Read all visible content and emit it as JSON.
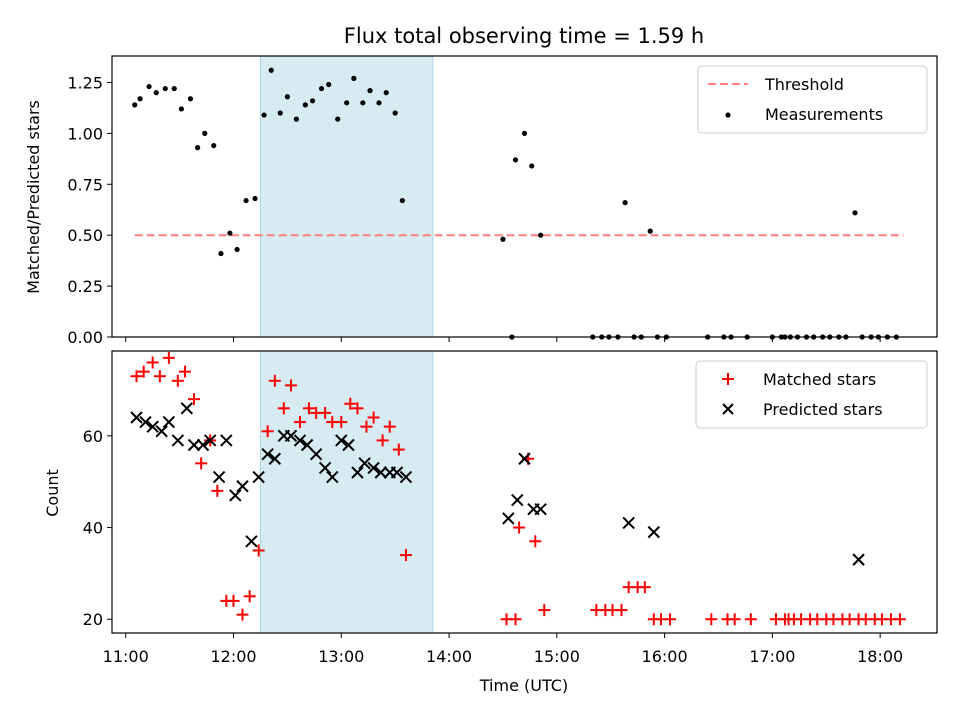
{
  "chart_data": {
    "type": "scatter",
    "title": "Flux total observing time = 1.59 h",
    "xlabel": "Time (UTC)",
    "x_ticks": [
      "11:00",
      "12:00",
      "13:00",
      "14:00",
      "15:00",
      "16:00",
      "17:00",
      "18:00"
    ],
    "highlight_span": {
      "start": "12:15",
      "end": "13:51",
      "color": "#add8e6"
    },
    "panels": [
      {
        "ylabel": "Matched/Predicted stars",
        "ylim": [
          0,
          1.38
        ],
        "y_ticks": [
          "0.00",
          "0.25",
          "0.50",
          "0.75",
          "1.00",
          "1.25"
        ],
        "legend": "top-right",
        "threshold": {
          "name": "Threshold",
          "value": 0.5,
          "x_range": [
            "11:05",
            "18:13"
          ],
          "color": "#ff7f7f"
        },
        "series": [
          {
            "name": "Measurements",
            "marker": "dot",
            "color": "#000000",
            "points": [
              [
                "11:05",
                1.14
              ],
              [
                "11:08",
                1.17
              ],
              [
                "11:13",
                1.23
              ],
              [
                "11:17",
                1.2
              ],
              [
                "11:22",
                1.22
              ],
              [
                "11:27",
                1.22
              ],
              [
                "11:31",
                1.12
              ],
              [
                "11:36",
                1.17
              ],
              [
                "11:40",
                0.93
              ],
              [
                "11:44",
                1.0
              ],
              [
                "11:49",
                0.94
              ],
              [
                "11:53",
                0.41
              ],
              [
                "11:58",
                0.51
              ],
              [
                "12:02",
                0.43
              ],
              [
                "12:07",
                0.67
              ],
              [
                "12:12",
                0.68
              ],
              [
                "12:17",
                1.09
              ],
              [
                "12:21",
                1.31
              ],
              [
                "12:26",
                1.1
              ],
              [
                "12:30",
                1.18
              ],
              [
                "12:35",
                1.07
              ],
              [
                "12:40",
                1.14
              ],
              [
                "12:44",
                1.16
              ],
              [
                "12:49",
                1.22
              ],
              [
                "12:53",
                1.24
              ],
              [
                "12:58",
                1.07
              ],
              [
                "13:03",
                1.15
              ],
              [
                "13:07",
                1.27
              ],
              [
                "13:12",
                1.15
              ],
              [
                "13:16",
                1.21
              ],
              [
                "13:21",
                1.15
              ],
              [
                "13:25",
                1.2
              ],
              [
                "13:30",
                1.1
              ],
              [
                "13:34",
                0.67
              ],
              [
                "14:30",
                0.48
              ],
              [
                "14:35",
                0.0
              ],
              [
                "14:37",
                0.87
              ],
              [
                "14:42",
                1.0
              ],
              [
                "14:46",
                0.84
              ],
              [
                "14:51",
                0.5
              ],
              [
                "15:20",
                0.0
              ],
              [
                "15:25",
                0.0
              ],
              [
                "15:29",
                0.0
              ],
              [
                "15:34",
                0.0
              ],
              [
                "15:38",
                0.66
              ],
              [
                "15:43",
                0.0
              ],
              [
                "15:47",
                0.0
              ],
              [
                "15:52",
                0.52
              ],
              [
                "15:56",
                0.0
              ],
              [
                "16:01",
                0.0
              ],
              [
                "16:24",
                0.0
              ],
              [
                "16:33",
                0.0
              ],
              [
                "16:37",
                0.0
              ],
              [
                "16:46",
                0.0
              ],
              [
                "17:00",
                0.0
              ],
              [
                "17:05",
                0.0
              ],
              [
                "17:07",
                0.0
              ],
              [
                "17:10",
                0.0
              ],
              [
                "17:14",
                0.0
              ],
              [
                "17:19",
                0.0
              ],
              [
                "17:23",
                0.0
              ],
              [
                "17:28",
                0.0
              ],
              [
                "17:32",
                0.0
              ],
              [
                "17:37",
                0.0
              ],
              [
                "17:41",
                0.0
              ],
              [
                "17:46",
                0.61
              ],
              [
                "17:50",
                0.0
              ],
              [
                "17:55",
                0.0
              ],
              [
                "17:59",
                0.0
              ],
              [
                "18:04",
                0.0
              ],
              [
                "18:09",
                0.0
              ]
            ]
          }
        ]
      },
      {
        "ylabel": "Count",
        "ylim": [
          17,
          78.5
        ],
        "y_ticks": [
          "20",
          "40",
          "60"
        ],
        "legend": "top-right",
        "series": [
          {
            "name": "Matched stars",
            "marker": "plus",
            "color": "#ff0000",
            "points": [
              [
                "11:06",
                73
              ],
              [
                "11:10",
                74
              ],
              [
                "11:15",
                76
              ],
              [
                "11:19",
                73
              ],
              [
                "11:24",
                77
              ],
              [
                "11:29",
                72
              ],
              [
                "11:33",
                74
              ],
              [
                "11:38",
                68
              ],
              [
                "11:42",
                54
              ],
              [
                "11:47",
                59
              ],
              [
                "11:51",
                48
              ],
              [
                "11:56",
                24
              ],
              [
                "12:00",
                24
              ],
              [
                "12:05",
                21
              ],
              [
                "12:09",
                25
              ],
              [
                "12:14",
                35
              ],
              [
                "12:19",
                61
              ],
              [
                "12:23",
                72
              ],
              [
                "12:28",
                66
              ],
              [
                "12:32",
                71
              ],
              [
                "12:37",
                63
              ],
              [
                "12:42",
                66
              ],
              [
                "12:46",
                65
              ],
              [
                "12:51",
                65
              ],
              [
                "12:55",
                63
              ],
              [
                "13:00",
                63
              ],
              [
                "13:05",
                67
              ],
              [
                "13:09",
                66
              ],
              [
                "13:14",
                62
              ],
              [
                "13:18",
                64
              ],
              [
                "13:23",
                59
              ],
              [
                "13:27",
                62
              ],
              [
                "13:32",
                57
              ],
              [
                "13:36",
                34
              ],
              [
                "14:32",
                20
              ],
              [
                "14:37",
                20
              ],
              [
                "14:39",
                40
              ],
              [
                "14:44",
                55
              ],
              [
                "14:48",
                37
              ],
              [
                "14:53",
                22
              ],
              [
                "15:22",
                22
              ],
              [
                "15:27",
                22
              ],
              [
                "15:31",
                22
              ],
              [
                "15:36",
                22
              ],
              [
                "15:40",
                27
              ],
              [
                "15:45",
                27
              ],
              [
                "15:49",
                27
              ],
              [
                "15:54",
                20
              ],
              [
                "15:58",
                20
              ],
              [
                "16:03",
                20
              ],
              [
                "16:26",
                20
              ],
              [
                "16:35",
                20
              ],
              [
                "16:39",
                20
              ],
              [
                "16:48",
                20
              ],
              [
                "17:02",
                20
              ],
              [
                "17:07",
                20
              ],
              [
                "17:09",
                20
              ],
              [
                "17:12",
                20
              ],
              [
                "17:16",
                20
              ],
              [
                "17:21",
                20
              ],
              [
                "17:25",
                20
              ],
              [
                "17:30",
                20
              ],
              [
                "17:34",
                20
              ],
              [
                "17:39",
                20
              ],
              [
                "17:43",
                20
              ],
              [
                "17:48",
                20
              ],
              [
                "17:52",
                20
              ],
              [
                "17:57",
                20
              ],
              [
                "18:01",
                20
              ],
              [
                "18:06",
                20
              ],
              [
                "18:11",
                20
              ]
            ]
          },
          {
            "name": "Predicted stars",
            "marker": "x",
            "color": "#000000",
            "points": [
              [
                "11:06",
                64
              ],
              [
                "11:11",
                63
              ],
              [
                "11:15",
                62
              ],
              [
                "11:20",
                61
              ],
              [
                "11:24",
                63
              ],
              [
                "11:29",
                59
              ],
              [
                "11:34",
                66
              ],
              [
                "11:38",
                58
              ],
              [
                "11:43",
                58
              ],
              [
                "11:47",
                59
              ],
              [
                "11:52",
                51
              ],
              [
                "11:56",
                59
              ],
              [
                "12:01",
                47
              ],
              [
                "12:05",
                49
              ],
              [
                "12:10",
                37
              ],
              [
                "12:14",
                51
              ],
              [
                "12:19",
                56
              ],
              [
                "12:23",
                55
              ],
              [
                "12:28",
                60
              ],
              [
                "12:32",
                60
              ],
              [
                "12:37",
                59
              ],
              [
                "12:41",
                58
              ],
              [
                "12:46",
                56
              ],
              [
                "12:51",
                53
              ],
              [
                "12:55",
                51
              ],
              [
                "13:00",
                59
              ],
              [
                "13:04",
                58
              ],
              [
                "13:09",
                52
              ],
              [
                "13:13",
                54
              ],
              [
                "13:18",
                53
              ],
              [
                "13:22",
                52
              ],
              [
                "13:27",
                52
              ],
              [
                "13:31",
                52
              ],
              [
                "13:36",
                51
              ],
              [
                "14:33",
                42
              ],
              [
                "14:38",
                46
              ],
              [
                "14:42",
                55
              ],
              [
                "14:47",
                44
              ],
              [
                "14:51",
                44
              ],
              [
                "15:40",
                41
              ],
              [
                "15:54",
                39
              ],
              [
                "17:48",
                33
              ]
            ]
          }
        ]
      }
    ]
  }
}
